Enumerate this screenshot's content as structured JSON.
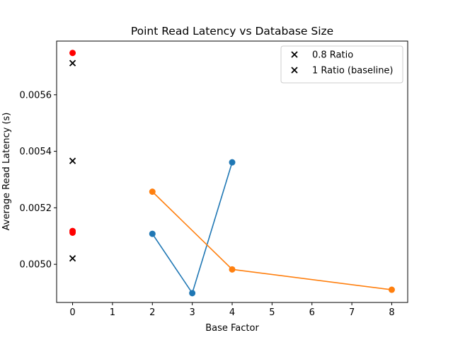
{
  "chart_data": {
    "type": "line",
    "title": "Point Read Latency vs Database Size",
    "xlabel": "Base Factor",
    "ylabel": "Average Read Latency (s)",
    "xlim": [
      -0.4,
      8.4
    ],
    "ylim": [
      0.004865,
      0.00579
    ],
    "xticks": [
      0,
      1,
      2,
      3,
      4,
      5,
      6,
      7,
      8
    ],
    "yticks": [
      0.005,
      0.0052,
      0.0054,
      0.0056
    ],
    "xtick_labels": [
      "0",
      "1",
      "2",
      "3",
      "4",
      "5",
      "6",
      "7",
      "8"
    ],
    "ytick_labels": [
      "0.0050",
      "0.0052",
      "0.0054",
      "0.0056"
    ],
    "grid": false,
    "legend_position": "top-right",
    "series": [
      {
        "kind": "line",
        "color": "#1f77b4",
        "x": [
          2,
          3,
          4
        ],
        "y": [
          0.005108,
          0.004898,
          0.005361
        ]
      },
      {
        "kind": "line",
        "color": "#ff7f0e",
        "x": [
          2,
          4,
          8
        ],
        "y": [
          0.005257,
          0.004982,
          0.00491
        ]
      },
      {
        "kind": "scatter-dot",
        "color": "#ff0000",
        "x": [
          0,
          0,
          0
        ],
        "y": [
          0.005748,
          0.005118,
          0.005112
        ]
      },
      {
        "kind": "scatter-x",
        "name": "0.8 Ratio",
        "color": "#000000",
        "x": [
          0,
          0
        ],
        "y": [
          0.005712,
          0.005021
        ]
      },
      {
        "kind": "scatter-x",
        "name": "1 Ratio (baseline)",
        "color": "#000000",
        "x": [
          0
        ],
        "y": [
          0.005366
        ]
      }
    ]
  }
}
